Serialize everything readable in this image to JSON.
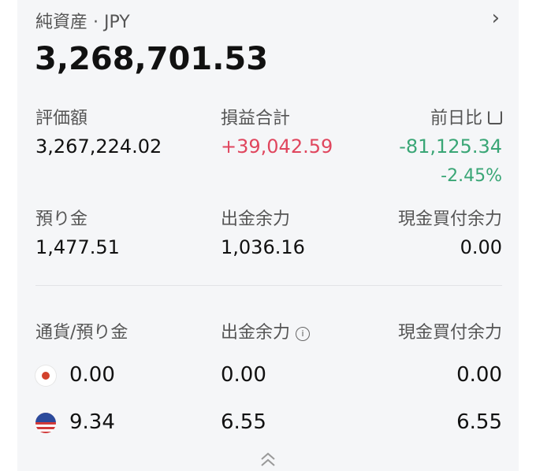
{
  "header": {
    "title": "純資産 · JPY",
    "net_assets": "3,268,701.53"
  },
  "summary": {
    "valuation_label": "評価額",
    "valuation": "3,267,224.02",
    "pnl_label": "損益合計",
    "pnl": "+39,042.59",
    "daychange_label": "前日比",
    "daychange": "-81,125.34",
    "daychange_pct": "-2.45%",
    "deposit_label": "預り金",
    "deposit": "1,477.51",
    "withdrawable_label": "出金余力",
    "withdrawable": "1,036.16",
    "buying_power_label": "現金買付余力",
    "buying_power": "0.00"
  },
  "currency_table": {
    "headers": [
      "通貨/預り金",
      "出金余力",
      "現金買付余力"
    ],
    "rows": [
      {
        "currency": "JPY",
        "flag": "japan-flag-icon",
        "deposit": "0.00",
        "withdrawable": "0.00",
        "buying_power": "0.00"
      },
      {
        "currency": "USD",
        "flag": "us-flag-icon",
        "deposit": "9.34",
        "withdrawable": "6.55",
        "buying_power": "6.55"
      }
    ]
  },
  "colors": {
    "positive": "#e0465e",
    "negative": "#3aa676",
    "card_bg": "#f5f6f8"
  }
}
